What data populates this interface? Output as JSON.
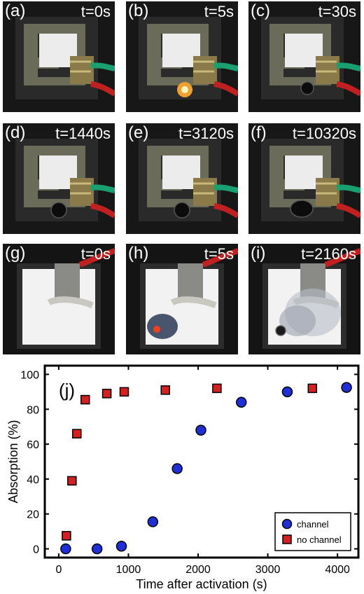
{
  "panels": [
    {
      "label": "(a)",
      "time": "t=0s",
      "kind": "device",
      "state": "initial"
    },
    {
      "label": "(b)",
      "time": "t=5s",
      "kind": "device",
      "state": "activation"
    },
    {
      "label": "(c)",
      "time": "t=30s",
      "kind": "device",
      "state": "bubble-small"
    },
    {
      "label": "(d)",
      "time": "t=1440s",
      "kind": "device",
      "state": "bubble"
    },
    {
      "label": "(e)",
      "time": "t=3120s",
      "kind": "device",
      "state": "bubble"
    },
    {
      "label": "(f)",
      "time": "t=10320s",
      "kind": "device",
      "state": "bubble-large"
    },
    {
      "label": "(g)",
      "time": "t=0s",
      "kind": "plate",
      "state": "initial"
    },
    {
      "label": "(h)",
      "time": "t=5s",
      "kind": "plate",
      "state": "activation"
    },
    {
      "label": "(i)",
      "time": "t=2160s",
      "kind": "plate",
      "state": "spread"
    }
  ],
  "chart_data": {
    "type": "scatter",
    "panel_label": "(j)",
    "xlabel": "Time after activation (s)",
    "ylabel": "Absorption (%)",
    "xlim": [
      -200,
      4300
    ],
    "ylim": [
      -5,
      105
    ],
    "xticks": [
      0,
      1000,
      2000,
      3000,
      4000
    ],
    "yticks": [
      0,
      20,
      40,
      60,
      80,
      100
    ],
    "legend_position": "bottom-right",
    "series": [
      {
        "name": "channel",
        "marker": "circle",
        "color": "#1f2fd6",
        "x": [
          100,
          550,
          900,
          1350,
          1700,
          2040,
          2620,
          3280,
          4130
        ],
        "y": [
          0,
          0,
          1.5,
          15.5,
          46,
          68,
          84,
          90,
          92.5
        ]
      },
      {
        "name": "no channel",
        "marker": "square",
        "color": "#d42020",
        "x": [
          110,
          190,
          260,
          380,
          690,
          940,
          1530,
          2270,
          3640
        ],
        "y": [
          7.5,
          39,
          66,
          85.5,
          89,
          90,
          91,
          92,
          92
        ]
      }
    ]
  }
}
